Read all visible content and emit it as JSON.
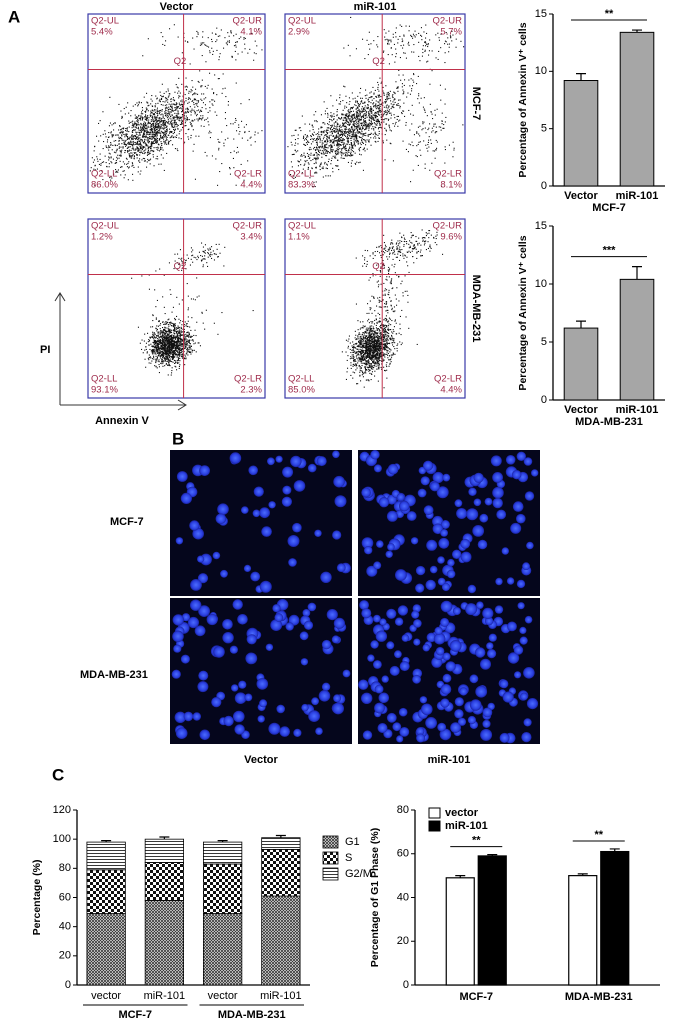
{
  "panel_labels": [
    "A",
    "B",
    "C"
  ],
  "flow": {
    "columns": [
      "Vector",
      "miR-101"
    ],
    "rows": [
      "MCF-7",
      "MDA-MB-231"
    ],
    "x_label": "Annexin V",
    "y_label": "PI",
    "gate": "Q2",
    "plots": [
      {
        "quadrants": [
          {
            "name": "Q2-UL",
            "percent": "5.4%"
          },
          {
            "name": "Q2-UR",
            "percent": "4.1%"
          },
          {
            "name": "Q2-LL",
            "percent": "86.0%"
          },
          {
            "name": "Q2-LR",
            "percent": "4.4%"
          }
        ]
      },
      {
        "quadrants": [
          {
            "name": "Q2-UL",
            "percent": "2.9%"
          },
          {
            "name": "Q2-UR",
            "percent": "5.7%"
          },
          {
            "name": "Q2-LL",
            "percent": "83.3%"
          },
          {
            "name": "Q2-LR",
            "percent": "8.1%"
          }
        ]
      },
      {
        "quadrants": [
          {
            "name": "Q2-UL",
            "percent": "1.2%"
          },
          {
            "name": "Q2-UR",
            "percent": "3.4%"
          },
          {
            "name": "Q2-LL",
            "percent": "93.1%"
          },
          {
            "name": "Q2-LR",
            "percent": "2.3%"
          }
        ]
      },
      {
        "quadrants": [
          {
            "name": "Q2-UL",
            "percent": "1.1%"
          },
          {
            "name": "Q2-UR",
            "percent": "9.6%"
          },
          {
            "name": "Q2-LL",
            "percent": "85.0%"
          },
          {
            "name": "Q2-LR",
            "percent": "4.4%"
          }
        ]
      }
    ]
  },
  "images": {
    "rows": [
      "MCF-7",
      "MDA-MB-231"
    ],
    "columns": [
      "Vector",
      "miR-101"
    ]
  },
  "chart_data": [
    {
      "type": "bar",
      "ylabel": "Percentage of Annexin V⁺ cells",
      "xlabel": "MCF-7",
      "categories": [
        "Vector",
        "miR-101"
      ],
      "values": [
        9.2,
        13.4
      ],
      "errors": [
        0.6,
        0.2
      ],
      "color": "#a6a6a6",
      "ylim": [
        0,
        15
      ],
      "yticks": [
        0,
        5,
        10,
        15
      ],
      "significance": "**"
    },
    {
      "type": "bar",
      "ylabel": "Percentage of Annexin V⁺ cells",
      "xlabel": "MDA-MB-231",
      "categories": [
        "Vector",
        "miR-101"
      ],
      "values": [
        6.2,
        10.4
      ],
      "errors": [
        0.6,
        1.1
      ],
      "color": "#a6a6a6",
      "ylim": [
        0,
        15
      ],
      "yticks": [
        0,
        5,
        10,
        15
      ],
      "significance": "***"
    },
    {
      "type": "stacked_bar",
      "ylabel": "Percentage (%)",
      "categories": [
        "vector",
        "miR-101",
        "vector",
        "miR-101"
      ],
      "group_labels": [
        "MCF-7",
        "MDA-MB-231"
      ],
      "series": [
        {
          "name": "G1",
          "pattern": "crosshatch",
          "values": [
            49,
            58,
            49,
            61
          ]
        },
        {
          "name": "S",
          "pattern": "checker",
          "values": [
            30,
            26,
            34,
            32
          ]
        },
        {
          "name": "G2/M",
          "pattern": "lines",
          "values": [
            19,
            16,
            15,
            8
          ],
          "errors": [
            1,
            1.5,
            1,
            1.5
          ]
        }
      ],
      "ylim": [
        0,
        120
      ],
      "yticks": [
        0,
        20,
        40,
        60,
        80,
        100,
        120
      ]
    },
    {
      "type": "grouped_bar",
      "ylabel": "Percentage of G1 Phase (%)",
      "categories": [
        "MCF-7",
        "MDA-MB-231"
      ],
      "series": [
        {
          "name": "vector",
          "color": "#ffffff",
          "values": [
            49,
            50
          ],
          "errors": [
            1,
            0.8
          ]
        },
        {
          "name": "miR-101",
          "color": "#000000",
          "values": [
            59,
            61
          ],
          "errors": [
            0.6,
            1.2
          ]
        }
      ],
      "ylim": [
        0,
        80
      ],
      "yticks": [
        0,
        20,
        40,
        60,
        80
      ],
      "significance": [
        "**",
        "**"
      ]
    }
  ]
}
